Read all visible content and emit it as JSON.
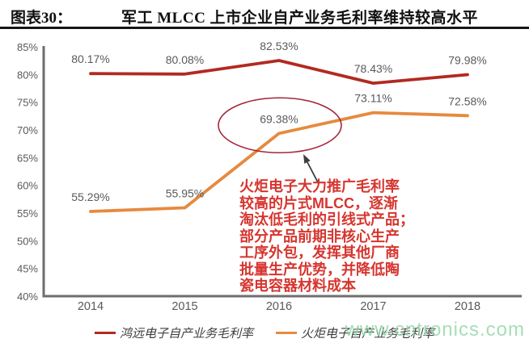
{
  "header": {
    "tag": "图表30：",
    "title": "军工 MLCC 上市企业自产业务毛利率维持较高水平"
  },
  "chart_data": {
    "type": "line",
    "title": "军工 MLCC 上市企业自产业务毛利率维持较高水平",
    "categories": [
      "2014",
      "2015",
      "2016",
      "2017",
      "2018"
    ],
    "series": [
      {
        "name": "鸿远电子自产业务毛利率",
        "color": "#B22A20",
        "values": [
          80.17,
          80.08,
          82.53,
          78.43,
          79.98
        ]
      },
      {
        "name": "火炬电子自产业务毛利率",
        "color": "#E68A3E",
        "values": [
          55.29,
          55.95,
          69.38,
          73.11,
          72.58
        ]
      }
    ],
    "xlabel": "",
    "ylabel": "",
    "ylim": [
      40,
      85
    ],
    "ytick_step": 5,
    "ytick_suffix": "%",
    "grid": false,
    "data_labels": true,
    "legend_position": "bottom",
    "axis_color": "#6e6e6e",
    "tick_label_color": "#595959",
    "data_label_color": "#5a5a5a",
    "highlight": {
      "series_index": 1,
      "point_index": 2,
      "label": "69.38%"
    }
  },
  "annotation": {
    "target_label": "69.38%",
    "color": "#D6352F",
    "text": "火炬电子大力推广毛利率\n较高的片式MLCC，逐渐\n淘汰低毛利的引线式产品；\n部分产品前期非核心生产\n工序外包，发挥其他厂商\n批量生产优势，并降低陶\n瓷电容器材料成本"
  },
  "legend": {
    "items": [
      {
        "label": "鸿远电子自产业务毛利率",
        "color": "#B22A20"
      },
      {
        "label": "火炬电子自产业务毛利率",
        "color": "#E68A3E"
      }
    ]
  },
  "watermark": {
    "text": "www.cntronics.com",
    "color": "#8FD6A6"
  }
}
